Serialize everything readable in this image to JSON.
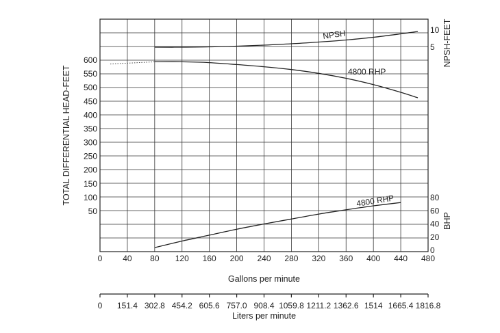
{
  "chart_data": {
    "type": "line",
    "xlabel": "Gallons per minute",
    "x_secondary_label": "Liters per minute",
    "ylabel_left": "TOTAL DIFFERENTIAL HEAD-FEET",
    "ylabel_right_top": "NPSH-FEET",
    "ylabel_right_bottom": "BHP",
    "xlim": [
      0,
      480
    ],
    "x_ticks": [
      "0",
      "40",
      "80",
      "120",
      "160",
      "200",
      "240",
      "280",
      "320",
      "360",
      "400",
      "440",
      "480"
    ],
    "x_secondary_ticks": [
      "0",
      "151.4",
      "302.8",
      "454.2",
      "605.6",
      "757.0",
      "908.4",
      "1059.8",
      "1211.2",
      "1362.6",
      "1514",
      "1665.4",
      "1816.8"
    ],
    "head_ticks": [
      "50",
      "100",
      "150",
      "200",
      "250",
      "300",
      "350",
      "400",
      "450",
      "500",
      "550",
      "600"
    ],
    "npsh_ticks": [
      "5",
      "10"
    ],
    "bhp_ticks": [
      "0",
      "20",
      "40",
      "60",
      "80"
    ],
    "grid": true,
    "series": [
      {
        "name": "NPSH",
        "axis": "npsh",
        "color": "#222222",
        "x": [
          80,
          120,
          160,
          200,
          240,
          280,
          320,
          360,
          400,
          440,
          465
        ],
        "y": [
          5.0,
          5.0,
          5.1,
          5.3,
          5.6,
          6.0,
          6.5,
          7.1,
          7.9,
          8.9,
          9.6
        ]
      },
      {
        "name": "4800 RHP",
        "axis": "head",
        "color": "#222222",
        "x": [
          80,
          120,
          160,
          200,
          240,
          280,
          320,
          360,
          400,
          440,
          465
        ],
        "y": [
          594,
          594,
          591,
          584,
          576,
          566,
          552,
          534,
          511,
          483,
          463
        ]
      },
      {
        "name": "4800 RHP",
        "axis": "bhp",
        "color": "#222222",
        "x": [
          80,
          120,
          160,
          200,
          240,
          280,
          320,
          360,
          400,
          440
        ],
        "y": [
          4,
          14,
          23,
          32,
          40,
          47.5,
          55,
          61.5,
          67.5,
          72.5
        ]
      }
    ],
    "dotted_segment": {
      "axis": "head",
      "x": [
        15,
        80
      ],
      "y": [
        586,
        594
      ]
    }
  }
}
